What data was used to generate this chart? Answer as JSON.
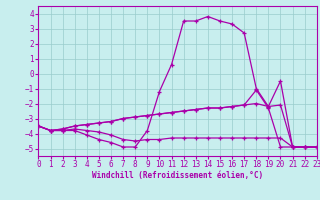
{
  "xlabel": "Windchill (Refroidissement éolien,°C)",
  "background_color": "#c8eeee",
  "line_color": "#aa00aa",
  "grid_color": "#99cccc",
  "xlim": [
    0,
    23
  ],
  "ylim": [
    -5.5,
    4.5
  ],
  "xticks": [
    0,
    1,
    2,
    3,
    4,
    5,
    6,
    7,
    8,
    9,
    10,
    11,
    12,
    13,
    14,
    15,
    16,
    17,
    18,
    19,
    20,
    21,
    22,
    23
  ],
  "yticks": [
    -5,
    -4,
    -3,
    -2,
    -1,
    0,
    1,
    2,
    3,
    4
  ],
  "series": [
    {
      "x": [
        0,
        1,
        2,
        3,
        4,
        5,
        6,
        7,
        8,
        9,
        10,
        11,
        12,
        13,
        14,
        15,
        16,
        17,
        18,
        19,
        20,
        21,
        22,
        23
      ],
      "y": [
        -3.5,
        -3.8,
        -3.8,
        -3.8,
        -4.1,
        -4.4,
        -4.6,
        -4.9,
        -4.9,
        -3.8,
        -1.2,
        0.6,
        3.5,
        3.5,
        3.8,
        3.5,
        3.3,
        2.7,
        -1.0,
        -2.2,
        -0.5,
        -4.9,
        -4.9,
        -4.9
      ]
    },
    {
      "x": [
        0,
        1,
        2,
        3,
        4,
        5,
        6,
        7,
        8,
        9,
        10,
        11,
        12,
        13,
        14,
        15,
        16,
        17,
        18,
        19,
        20,
        21,
        22,
        23
      ],
      "y": [
        -3.5,
        -3.8,
        -3.7,
        -3.5,
        -3.4,
        -3.3,
        -3.2,
        -3.0,
        -2.9,
        -2.8,
        -2.7,
        -2.6,
        -2.5,
        -2.4,
        -2.3,
        -2.3,
        -2.2,
        -2.1,
        -1.1,
        -2.3,
        -4.9,
        -4.9,
        -4.9,
        -4.9
      ]
    },
    {
      "x": [
        0,
        1,
        2,
        3,
        4,
        5,
        6,
        7,
        8,
        9,
        10,
        11,
        12,
        13,
        14,
        15,
        16,
        17,
        18,
        19,
        20,
        21,
        22,
        23
      ],
      "y": [
        -3.5,
        -3.8,
        -3.7,
        -3.5,
        -3.4,
        -3.3,
        -3.2,
        -3.0,
        -2.9,
        -2.8,
        -2.7,
        -2.6,
        -2.5,
        -2.4,
        -2.3,
        -2.3,
        -2.2,
        -2.1,
        -2.0,
        -2.2,
        -2.1,
        -4.9,
        -4.9,
        -4.9
      ]
    },
    {
      "x": [
        0,
        1,
        2,
        3,
        4,
        5,
        6,
        7,
        8,
        9,
        10,
        11,
        12,
        13,
        14,
        15,
        16,
        17,
        18,
        19,
        20,
        21,
        22,
        23
      ],
      "y": [
        -3.5,
        -3.8,
        -3.8,
        -3.7,
        -3.8,
        -3.9,
        -4.1,
        -4.4,
        -4.5,
        -4.4,
        -4.4,
        -4.3,
        -4.3,
        -4.3,
        -4.3,
        -4.3,
        -4.3,
        -4.3,
        -4.3,
        -4.3,
        -4.3,
        -4.9,
        -4.9,
        -4.9
      ]
    }
  ]
}
